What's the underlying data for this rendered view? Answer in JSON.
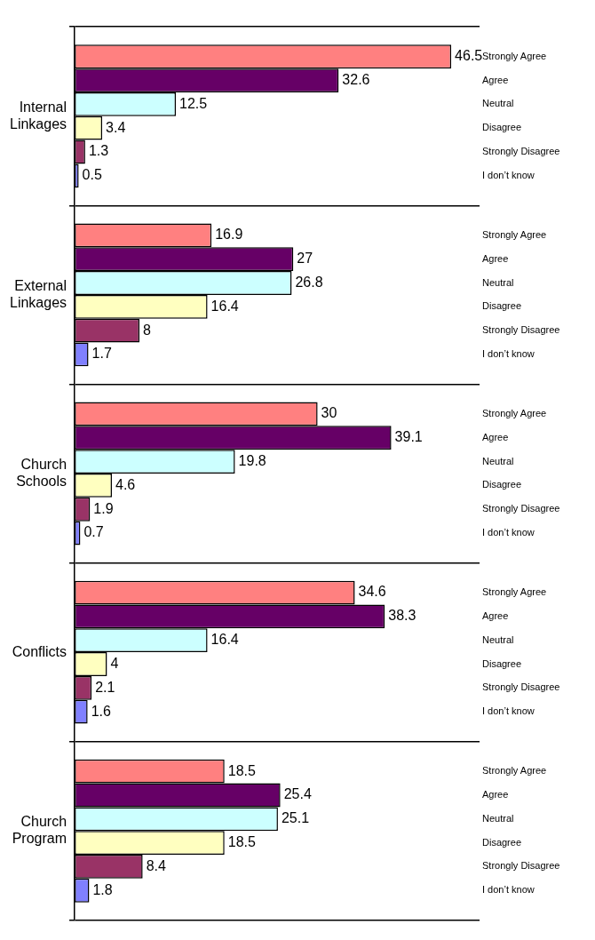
{
  "chart_data": {
    "type": "bar",
    "orientation": "horizontal",
    "categories": [
      "Internal Linkages",
      "External Linkages",
      "Church Schools",
      "Conflicts",
      "Church Program"
    ],
    "series": [
      {
        "name": "Strongly Agree",
        "color": "#ff8080",
        "values": [
          46.5,
          16.9,
          30,
          34.6,
          18.5
        ]
      },
      {
        "name": "Agree",
        "color": "#660066",
        "values": [
          32.6,
          27,
          39.1,
          38.3,
          25.4
        ]
      },
      {
        "name": "Neutral",
        "color": "#ccffff",
        "values": [
          12.5,
          26.8,
          19.8,
          16.4,
          25.1
        ]
      },
      {
        "name": "Disagree",
        "color": "#ffffc0",
        "values": [
          3.4,
          16.4,
          4.6,
          4,
          18.5
        ]
      },
      {
        "name": "Strongly Disagree",
        "color": "#993366",
        "values": [
          1.3,
          8,
          1.9,
          2.1,
          8.4
        ]
      },
      {
        "name": "I don’t know",
        "color": "#8080ff",
        "values": [
          0.5,
          1.7,
          0.7,
          1.6,
          1.8
        ]
      }
    ],
    "xlim": [
      0,
      50
    ],
    "data_labels": true,
    "grid": "y"
  }
}
